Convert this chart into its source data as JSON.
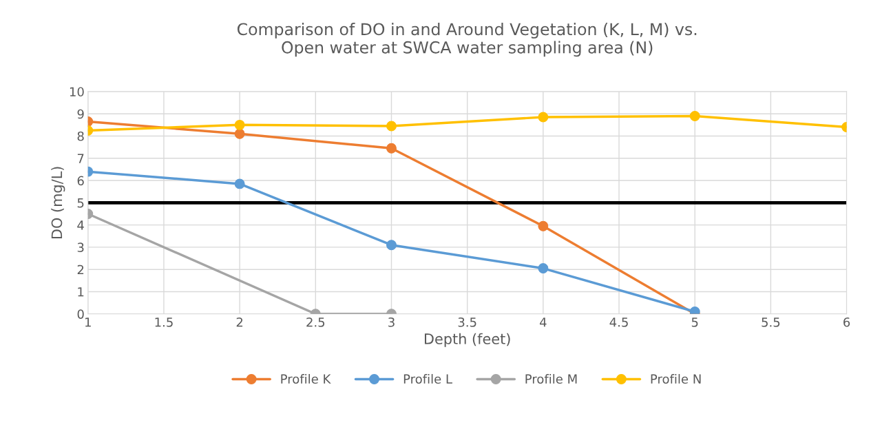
{
  "chart_data": {
    "type": "line",
    "title": "Comparison of DO in and Around Vegetation (K, L, M) vs.\nOpen water at SWCA water sampling area (N)",
    "xlabel": "Depth (feet)",
    "ylabel": "DO (mg/L)",
    "series": [
      {
        "name": "Profile K",
        "color": "#ed7d31",
        "x": [
          1,
          2,
          3,
          4,
          5
        ],
        "values": [
          8.65,
          8.1,
          7.45,
          3.95,
          0
        ]
      },
      {
        "name": "Profile L",
        "color": "#5b9bd5",
        "x": [
          1,
          2,
          3,
          4,
          5
        ],
        "values": [
          6.4,
          5.85,
          3.1,
          2.05,
          0.1
        ]
      },
      {
        "name": "Profile M",
        "color": "#a5a5a5",
        "x": [
          1,
          2.5,
          3
        ],
        "values": [
          4.5,
          0,
          0
        ]
      },
      {
        "name": "Profile N",
        "color": "#ffc000",
        "x": [
          1,
          2,
          3,
          4,
          5,
          6
        ],
        "values": [
          8.25,
          8.5,
          8.45,
          8.85,
          8.9,
          8.4
        ]
      }
    ],
    "ref_lines": [
      {
        "axis": "y",
        "value": 5,
        "color": "#000000"
      }
    ],
    "xlim": [
      1,
      6
    ],
    "xticks": [
      1,
      1.5,
      2,
      2.5,
      3,
      3.5,
      4,
      4.5,
      5,
      5.5,
      6
    ],
    "ylim": [
      0,
      10
    ],
    "yticks": [
      0,
      1,
      2,
      3,
      4,
      5,
      6,
      7,
      8,
      9,
      10
    ],
    "grid": true,
    "legend": "bottom",
    "marker": "circle",
    "line_style": "solid"
  }
}
